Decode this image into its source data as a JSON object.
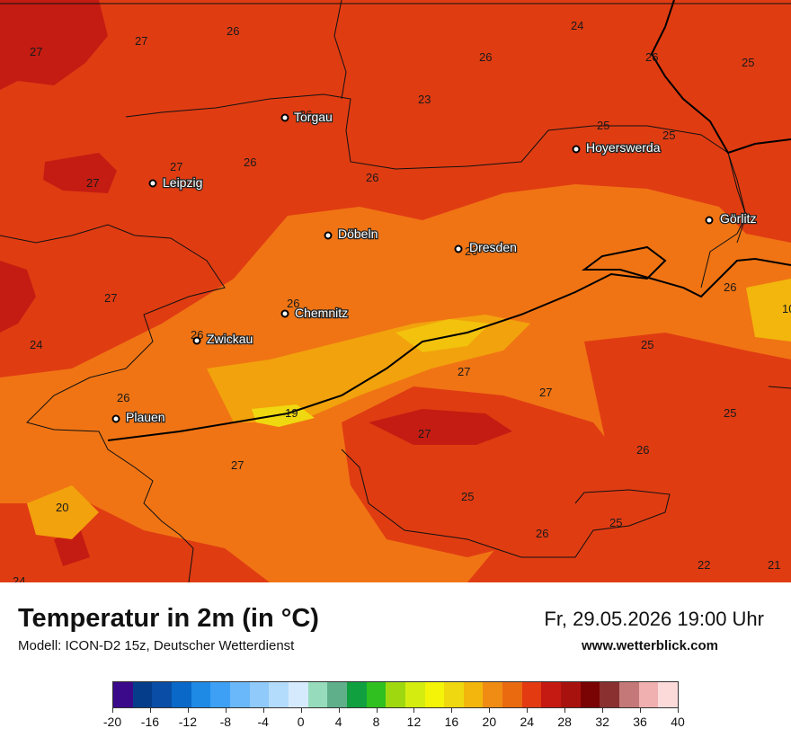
{
  "map": {
    "cities": [
      {
        "name": "Torgau"
      },
      {
        "name": "Leipzig"
      },
      {
        "name": "Hoyerswerda"
      },
      {
        "name": "Döbeln"
      },
      {
        "name": "Dresden"
      },
      {
        "name": "Görlitz"
      },
      {
        "name": "Chemnitz"
      },
      {
        "name": "Zwickau"
      },
      {
        "name": "Plauen"
      }
    ],
    "temperature_labels": [
      "27",
      "27",
      "26",
      "24",
      "26",
      "26",
      "25",
      "23",
      "25",
      "25",
      "26",
      "26",
      "27",
      "26",
      "27",
      "26",
      "26",
      "26",
      "26",
      "27",
      "27",
      "25",
      "26",
      "24",
      "10",
      "25",
      "27",
      "27",
      "26",
      "19",
      "25",
      "27",
      "25",
      "26",
      "20",
      "26",
      "26",
      "25",
      "26",
      "22",
      "21",
      "24"
    ]
  },
  "header": {
    "title": "Temperatur in 2m (in °C)",
    "model": "Modell: ICON-D2 15z, Deutscher Wetterdienst",
    "datetime": "Fr, 29.05.2026 19:00 Uhr",
    "website": "www.wetterblick.com"
  },
  "legend": {
    "colors": [
      "#3a0a8a",
      "#063d8a",
      "#0a4da6",
      "#0a68c8",
      "#1e8ae6",
      "#3da0f5",
      "#6ab8fa",
      "#8fcafa",
      "#b3dbfb",
      "#d6eafd",
      "#96dcbc",
      "#5fb08a",
      "#10a040",
      "#30c020",
      "#a0d810",
      "#d4ec10",
      "#f4f408",
      "#f0d810",
      "#f2b60c",
      "#f08c14",
      "#ea6a10",
      "#e43a12",
      "#c41a12",
      "#a8120e",
      "#7a0404",
      "#8a3030",
      "#c47878",
      "#f0b0b0",
      "#fcdada"
    ],
    "ticks": [
      "-20",
      "-16",
      "-12",
      "-8",
      "-4",
      "0",
      "4",
      "8",
      "12",
      "16",
      "20",
      "24",
      "28",
      "32",
      "36",
      "40"
    ]
  }
}
